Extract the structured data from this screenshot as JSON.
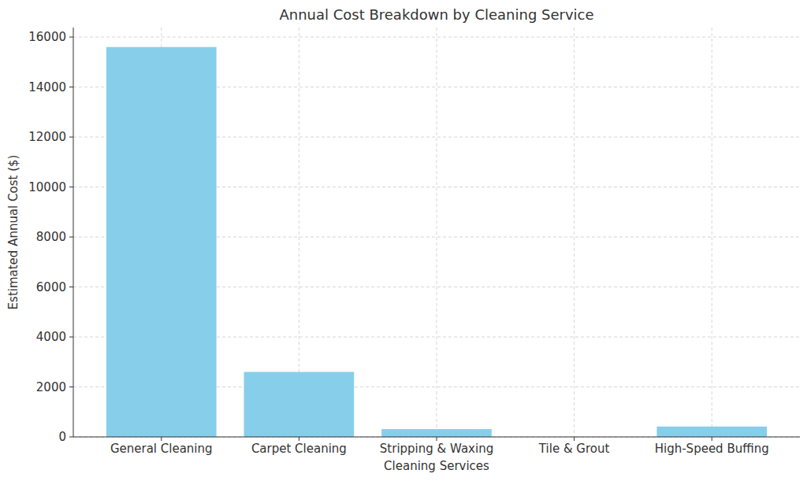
{
  "chart_data": {
    "type": "bar",
    "title": "Annual Cost Breakdown by Cleaning Service",
    "x_label": "Cleaning Services",
    "y_label": "Estimated Annual Cost ($)",
    "categories": [
      "General Cleaning",
      "Carpet Cleaning",
      "Stripping & Waxing",
      "Tile & Grout",
      "High-Speed Buffing"
    ],
    "values": [
      15600,
      2600,
      312,
      0,
      416
    ],
    "color": "#87ceeb",
    "ylim": [
      0,
      16380
    ],
    "yticks": [
      0,
      2000,
      4000,
      6000,
      8000,
      10000,
      12000,
      14000,
      16000
    ],
    "grid": true
  }
}
